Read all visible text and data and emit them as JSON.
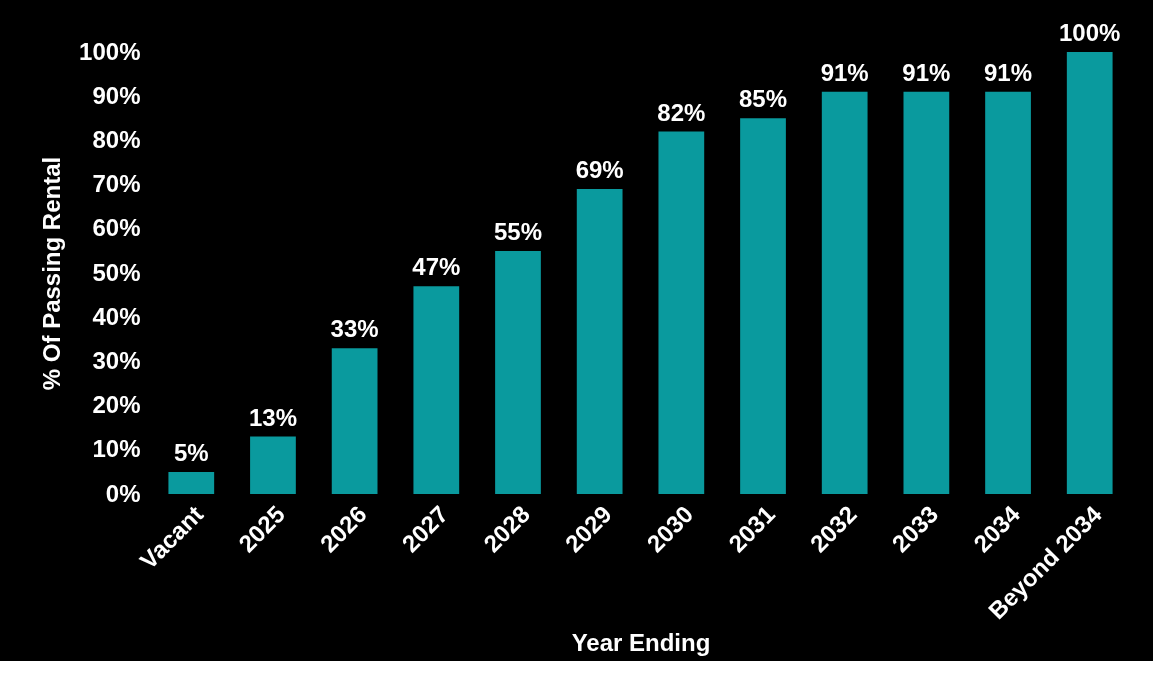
{
  "chart_data": {
    "type": "bar",
    "xlabel": "Year Ending",
    "ylabel": "% Of Passing Rental",
    "categories": [
      "Vacant",
      "2025",
      "2026",
      "2027",
      "2028",
      "2029",
      "2030",
      "2031",
      "2032",
      "2033",
      "2034",
      "Beyond 2034"
    ],
    "values": [
      5,
      13,
      33,
      47,
      55,
      69,
      82,
      85,
      91,
      91,
      91,
      100
    ],
    "value_labels": [
      "5%",
      "13%",
      "33%",
      "47%",
      "55%",
      "69%",
      "82%",
      "85%",
      "91%",
      "91%",
      "91%",
      "100%"
    ],
    "color": "#0a9a9e",
    "ylim": [
      0,
      100
    ],
    "yticks": [
      {
        "value": 0,
        "label": "0%"
      },
      {
        "value": 10,
        "label": "10%"
      },
      {
        "value": 20,
        "label": "20%"
      },
      {
        "value": 30,
        "label": "30%"
      },
      {
        "value": 40,
        "label": "40%"
      },
      {
        "value": 50,
        "label": "50%"
      },
      {
        "value": 60,
        "label": "60%"
      },
      {
        "value": 70,
        "label": "70%"
      },
      {
        "value": 80,
        "label": "80%"
      },
      {
        "value": 90,
        "label": "90%"
      },
      {
        "value": 100,
        "label": "100%"
      }
    ],
    "grid": false
  }
}
